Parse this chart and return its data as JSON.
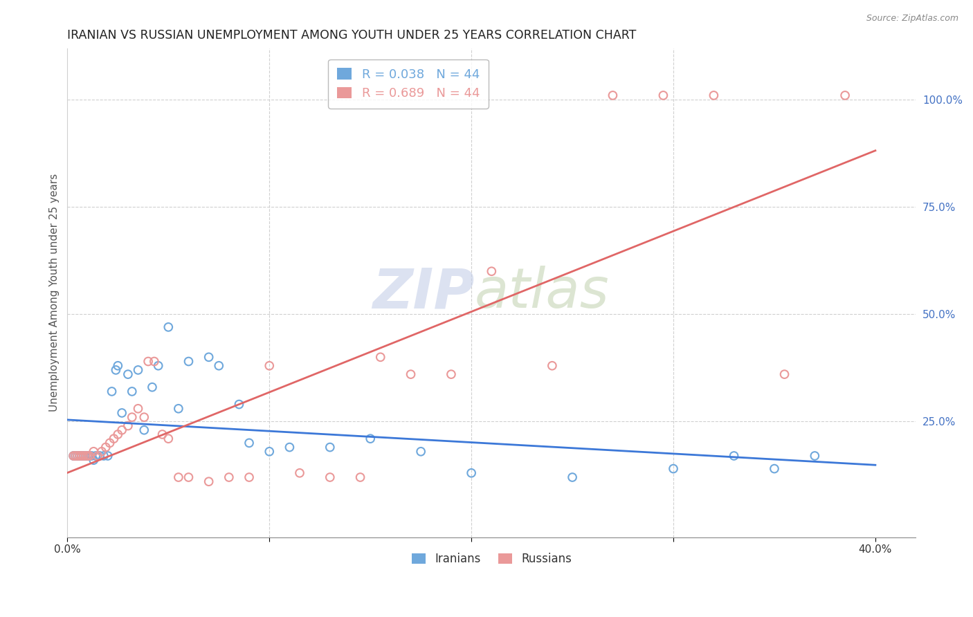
{
  "title": "IRANIAN VS RUSSIAN UNEMPLOYMENT AMONG YOUTH UNDER 25 YEARS CORRELATION CHART",
  "source": "Source: ZipAtlas.com",
  "ylabel": "Unemployment Among Youth under 25 years",
  "xlim": [
    0.0,
    0.42
  ],
  "ylim": [
    -0.02,
    1.12
  ],
  "xtick_vals": [
    0.0,
    0.1,
    0.2,
    0.3,
    0.4
  ],
  "xticklabels": [
    "0.0%",
    "",
    "",
    "",
    "40.0%"
  ],
  "ytick_right_vals": [
    0.25,
    0.5,
    0.75,
    1.0
  ],
  "ytick_right_labels": [
    "25.0%",
    "50.0%",
    "75.0%",
    "100.0%"
  ],
  "legend_entries": [
    {
      "label": "R = 0.038   N = 44",
      "color": "#6fa8dc"
    },
    {
      "label": "R = 0.689   N = 44",
      "color": "#ea9999"
    }
  ],
  "iranians_x": [
    0.003,
    0.004,
    0.005,
    0.006,
    0.007,
    0.008,
    0.009,
    0.01,
    0.011,
    0.012,
    0.013,
    0.014,
    0.015,
    0.016,
    0.018,
    0.02,
    0.022,
    0.024,
    0.025,
    0.027,
    0.03,
    0.032,
    0.035,
    0.038,
    0.042,
    0.045,
    0.05,
    0.055,
    0.06,
    0.07,
    0.075,
    0.085,
    0.09,
    0.1,
    0.11,
    0.13,
    0.15,
    0.175,
    0.2,
    0.25,
    0.3,
    0.33,
    0.35,
    0.37
  ],
  "iranians_y": [
    0.17,
    0.17,
    0.17,
    0.17,
    0.17,
    0.17,
    0.17,
    0.17,
    0.17,
    0.17,
    0.16,
    0.17,
    0.17,
    0.17,
    0.17,
    0.17,
    0.32,
    0.37,
    0.38,
    0.27,
    0.36,
    0.32,
    0.37,
    0.23,
    0.33,
    0.38,
    0.47,
    0.28,
    0.39,
    0.4,
    0.38,
    0.29,
    0.2,
    0.18,
    0.19,
    0.19,
    0.21,
    0.18,
    0.13,
    0.12,
    0.14,
    0.17,
    0.14,
    0.17
  ],
  "russians_x": [
    0.003,
    0.004,
    0.005,
    0.006,
    0.007,
    0.008,
    0.009,
    0.01,
    0.011,
    0.013,
    0.015,
    0.017,
    0.019,
    0.021,
    0.023,
    0.025,
    0.027,
    0.03,
    0.032,
    0.035,
    0.038,
    0.04,
    0.043,
    0.047,
    0.05,
    0.055,
    0.06,
    0.07,
    0.08,
    0.09,
    0.1,
    0.115,
    0.13,
    0.145,
    0.155,
    0.17,
    0.19,
    0.21,
    0.24,
    0.27,
    0.295,
    0.32,
    0.355,
    0.385
  ],
  "russians_y": [
    0.17,
    0.17,
    0.17,
    0.17,
    0.17,
    0.17,
    0.17,
    0.17,
    0.17,
    0.18,
    0.17,
    0.18,
    0.19,
    0.2,
    0.21,
    0.22,
    0.23,
    0.24,
    0.26,
    0.28,
    0.26,
    0.39,
    0.39,
    0.22,
    0.21,
    0.12,
    0.12,
    0.11,
    0.12,
    0.12,
    0.38,
    0.13,
    0.12,
    0.12,
    0.4,
    0.36,
    0.36,
    0.6,
    0.38,
    1.01,
    1.01,
    1.01,
    0.36,
    1.01
  ],
  "blue_color": "#6fa8dc",
  "pink_color": "#ea9999",
  "blue_line_color": "#3c78d8",
  "pink_line_color": "#e06666",
  "grid_color": "#d0d0d0",
  "title_color": "#222222",
  "axis_label_color": "#555555",
  "right_tick_color": "#4472c4",
  "marker_size": 70,
  "watermark_zip_color": "#c5cfe8",
  "watermark_atlas_color": "#c5d5b5"
}
